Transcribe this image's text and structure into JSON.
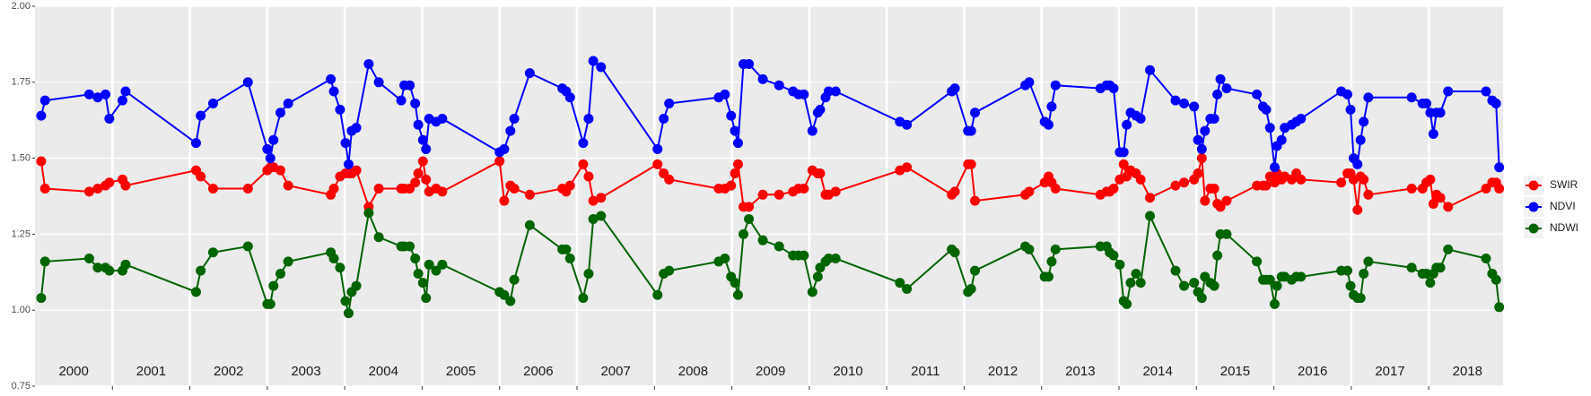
{
  "chart_data": {
    "type": "line",
    "x": [
      2000.08,
      2000.13,
      2000.7,
      2000.81,
      2000.91,
      2000.96,
      2001.13,
      2001.17,
      2002.08,
      2002.14,
      2002.3,
      2002.75,
      2003.0,
      2003.04,
      2003.08,
      2003.17,
      2003.27,
      2003.82,
      2003.86,
      2003.94,
      2004.01,
      2004.05,
      2004.09,
      2004.15,
      2004.31,
      2004.44,
      2004.73,
      2004.77,
      2004.84,
      2004.91,
      2004.95,
      2005.01,
      2005.05,
      2005.09,
      2005.18,
      2005.26,
      2006.0,
      2006.06,
      2006.14,
      2006.19,
      2006.39,
      2006.81,
      2006.86,
      2006.91,
      2007.08,
      2007.15,
      2007.21,
      2007.31,
      2008.04,
      2008.12,
      2008.19,
      2008.83,
      2008.91,
      2008.99,
      2009.04,
      2009.08,
      2009.15,
      2009.22,
      2009.4,
      2009.61,
      2009.79,
      2009.86,
      2009.93,
      2010.04,
      2010.11,
      2010.14,
      2010.21,
      2010.25,
      2010.34,
      2011.17,
      2011.26,
      2011.84,
      2011.88,
      2012.05,
      2012.09,
      2012.14,
      2012.79,
      2012.84,
      2013.04,
      2013.09,
      2013.13,
      2013.18,
      2013.76,
      2013.84,
      2013.88,
      2013.93,
      2014.01,
      2014.06,
      2014.1,
      2014.15,
      2014.22,
      2014.28,
      2014.4,
      2014.73,
      2014.84,
      2014.97,
      2015.02,
      2015.07,
      2015.11,
      2015.18,
      2015.23,
      2015.27,
      2015.31,
      2015.39,
      2015.78,
      2015.86,
      2015.9,
      2015.95,
      2016.01,
      2016.04,
      2016.1,
      2016.14,
      2016.23,
      2016.29,
      2016.35,
      2016.87,
      2016.95,
      2016.99,
      2017.03,
      2017.08,
      2017.12,
      2017.16,
      2017.22,
      2017.78,
      2017.92,
      2017.97,
      2018.02,
      2018.06,
      2018.1,
      2018.15,
      2018.25,
      2018.74,
      2018.82,
      2018.87,
      2018.91
    ],
    "series": [
      {
        "name": "SWIR",
        "color": "#ff0000",
        "values": [
          1.49,
          1.4,
          1.39,
          1.4,
          1.41,
          1.42,
          1.43,
          1.41,
          1.46,
          1.44,
          1.4,
          1.4,
          1.46,
          1.47,
          1.47,
          1.46,
          1.41,
          1.38,
          1.4,
          1.44,
          1.45,
          1.45,
          1.45,
          1.46,
          1.34,
          1.4,
          1.4,
          1.4,
          1.4,
          1.42,
          1.45,
          1.49,
          1.43,
          1.39,
          1.4,
          1.39,
          1.49,
          1.36,
          1.41,
          1.4,
          1.38,
          1.4,
          1.39,
          1.41,
          1.48,
          1.44,
          1.36,
          1.37,
          1.48,
          1.45,
          1.43,
          1.4,
          1.4,
          1.41,
          1.45,
          1.48,
          1.34,
          1.34,
          1.38,
          1.38,
          1.39,
          1.4,
          1.4,
          1.46,
          1.45,
          1.45,
          1.38,
          1.38,
          1.39,
          1.46,
          1.47,
          1.38,
          1.39,
          1.48,
          1.48,
          1.36,
          1.38,
          1.39,
          1.42,
          1.44,
          1.42,
          1.4,
          1.38,
          1.39,
          1.39,
          1.4,
          1.43,
          1.48,
          1.44,
          1.46,
          1.45,
          1.43,
          1.37,
          1.41,
          1.42,
          1.43,
          1.45,
          1.5,
          1.36,
          1.4,
          1.4,
          1.35,
          1.34,
          1.36,
          1.41,
          1.41,
          1.41,
          1.44,
          1.42,
          1.45,
          1.43,
          1.44,
          1.43,
          1.45,
          1.43,
          1.42,
          1.45,
          1.45,
          1.43,
          1.33,
          1.44,
          1.43,
          1.38,
          1.4,
          1.4,
          1.42,
          1.43,
          1.35,
          1.38,
          1.37,
          1.34,
          1.4,
          1.42,
          1.42,
          1.4
        ]
      },
      {
        "name": "NDVI",
        "color": "#0000ff",
        "values": [
          1.64,
          1.69,
          1.71,
          1.7,
          1.71,
          1.63,
          1.69,
          1.72,
          1.55,
          1.64,
          1.68,
          1.75,
          1.53,
          1.5,
          1.56,
          1.65,
          1.68,
          1.76,
          1.72,
          1.66,
          1.55,
          1.48,
          1.59,
          1.6,
          1.81,
          1.75,
          1.69,
          1.74,
          1.74,
          1.68,
          1.61,
          1.56,
          1.53,
          1.63,
          1.62,
          1.63,
          1.52,
          1.53,
          1.59,
          1.63,
          1.78,
          1.73,
          1.72,
          1.7,
          1.55,
          1.63,
          1.82,
          1.8,
          1.53,
          1.63,
          1.68,
          1.7,
          1.71,
          1.64,
          1.59,
          1.55,
          1.81,
          1.81,
          1.76,
          1.74,
          1.72,
          1.71,
          1.71,
          1.59,
          1.65,
          1.66,
          1.7,
          1.72,
          1.72,
          1.62,
          1.61,
          1.72,
          1.73,
          1.59,
          1.59,
          1.65,
          1.74,
          1.75,
          1.62,
          1.61,
          1.67,
          1.74,
          1.73,
          1.74,
          1.74,
          1.73,
          1.52,
          1.52,
          1.61,
          1.65,
          1.64,
          1.63,
          1.79,
          1.69,
          1.68,
          1.67,
          1.56,
          1.53,
          1.59,
          1.63,
          1.63,
          1.71,
          1.76,
          1.73,
          1.71,
          1.67,
          1.66,
          1.6,
          1.47,
          1.54,
          1.56,
          1.6,
          1.61,
          1.62,
          1.63,
          1.72,
          1.71,
          1.66,
          1.5,
          1.48,
          1.56,
          1.62,
          1.7,
          1.7,
          1.68,
          1.68,
          1.65,
          1.58,
          1.65,
          1.65,
          1.72,
          1.72,
          1.69,
          1.68,
          1.47
        ]
      },
      {
        "name": "NDWI",
        "color": "#006400",
        "values": [
          1.04,
          1.16,
          1.17,
          1.14,
          1.14,
          1.13,
          1.13,
          1.15,
          1.06,
          1.13,
          1.19,
          1.21,
          1.02,
          1.02,
          1.08,
          1.12,
          1.16,
          1.19,
          1.17,
          1.14,
          1.03,
          0.99,
          1.06,
          1.08,
          1.32,
          1.24,
          1.21,
          1.21,
          1.21,
          1.17,
          1.12,
          1.09,
          1.04,
          1.15,
          1.13,
          1.15,
          1.06,
          1.05,
          1.03,
          1.1,
          1.28,
          1.2,
          1.2,
          1.17,
          1.04,
          1.12,
          1.3,
          1.31,
          1.05,
          1.12,
          1.13,
          1.16,
          1.17,
          1.11,
          1.09,
          1.05,
          1.25,
          1.3,
          1.23,
          1.21,
          1.18,
          1.18,
          1.18,
          1.06,
          1.11,
          1.14,
          1.16,
          1.17,
          1.17,
          1.09,
          1.07,
          1.2,
          1.19,
          1.06,
          1.07,
          1.13,
          1.21,
          1.2,
          1.11,
          1.11,
          1.16,
          1.2,
          1.21,
          1.21,
          1.19,
          1.18,
          1.15,
          1.03,
          1.02,
          1.09,
          1.12,
          1.09,
          1.31,
          1.13,
          1.08,
          1.09,
          1.06,
          1.04,
          1.11,
          1.09,
          1.08,
          1.18,
          1.25,
          1.25,
          1.16,
          1.1,
          1.1,
          1.1,
          1.02,
          1.08,
          1.11,
          1.11,
          1.1,
          1.11,
          1.11,
          1.13,
          1.13,
          1.08,
          1.05,
          1.04,
          1.04,
          1.12,
          1.16,
          1.14,
          1.12,
          1.12,
          1.09,
          1.12,
          1.14,
          1.14,
          1.2,
          1.17,
          1.12,
          1.1,
          1.01
        ]
      }
    ],
    "xlim": [
      2000,
      2018.96
    ],
    "xticks": [
      2001,
      2002,
      2003,
      2004,
      2005,
      2006,
      2007,
      2008,
      2009,
      2010,
      2011,
      2012,
      2013,
      2014,
      2015,
      2016,
      2017,
      2018
    ],
    "year_labels": [
      "2000",
      "2001",
      "2002",
      "2003",
      "2004",
      "2005",
      "2006",
      "2007",
      "2008",
      "2009",
      "2010",
      "2011",
      "2012",
      "2013",
      "2014",
      "2015",
      "2016",
      "2017",
      "2018"
    ],
    "ylim": [
      0.75,
      2.0
    ],
    "yticks": [
      0.75,
      {
        "value": 1.0,
        "label": "1.00"
      },
      1.25,
      {
        "value": 1.5,
        "label": "1.50"
      },
      1.75,
      {
        "value": 2.0,
        "label": "2.00"
      }
    ],
    "grid": true,
    "legend": "right"
  }
}
